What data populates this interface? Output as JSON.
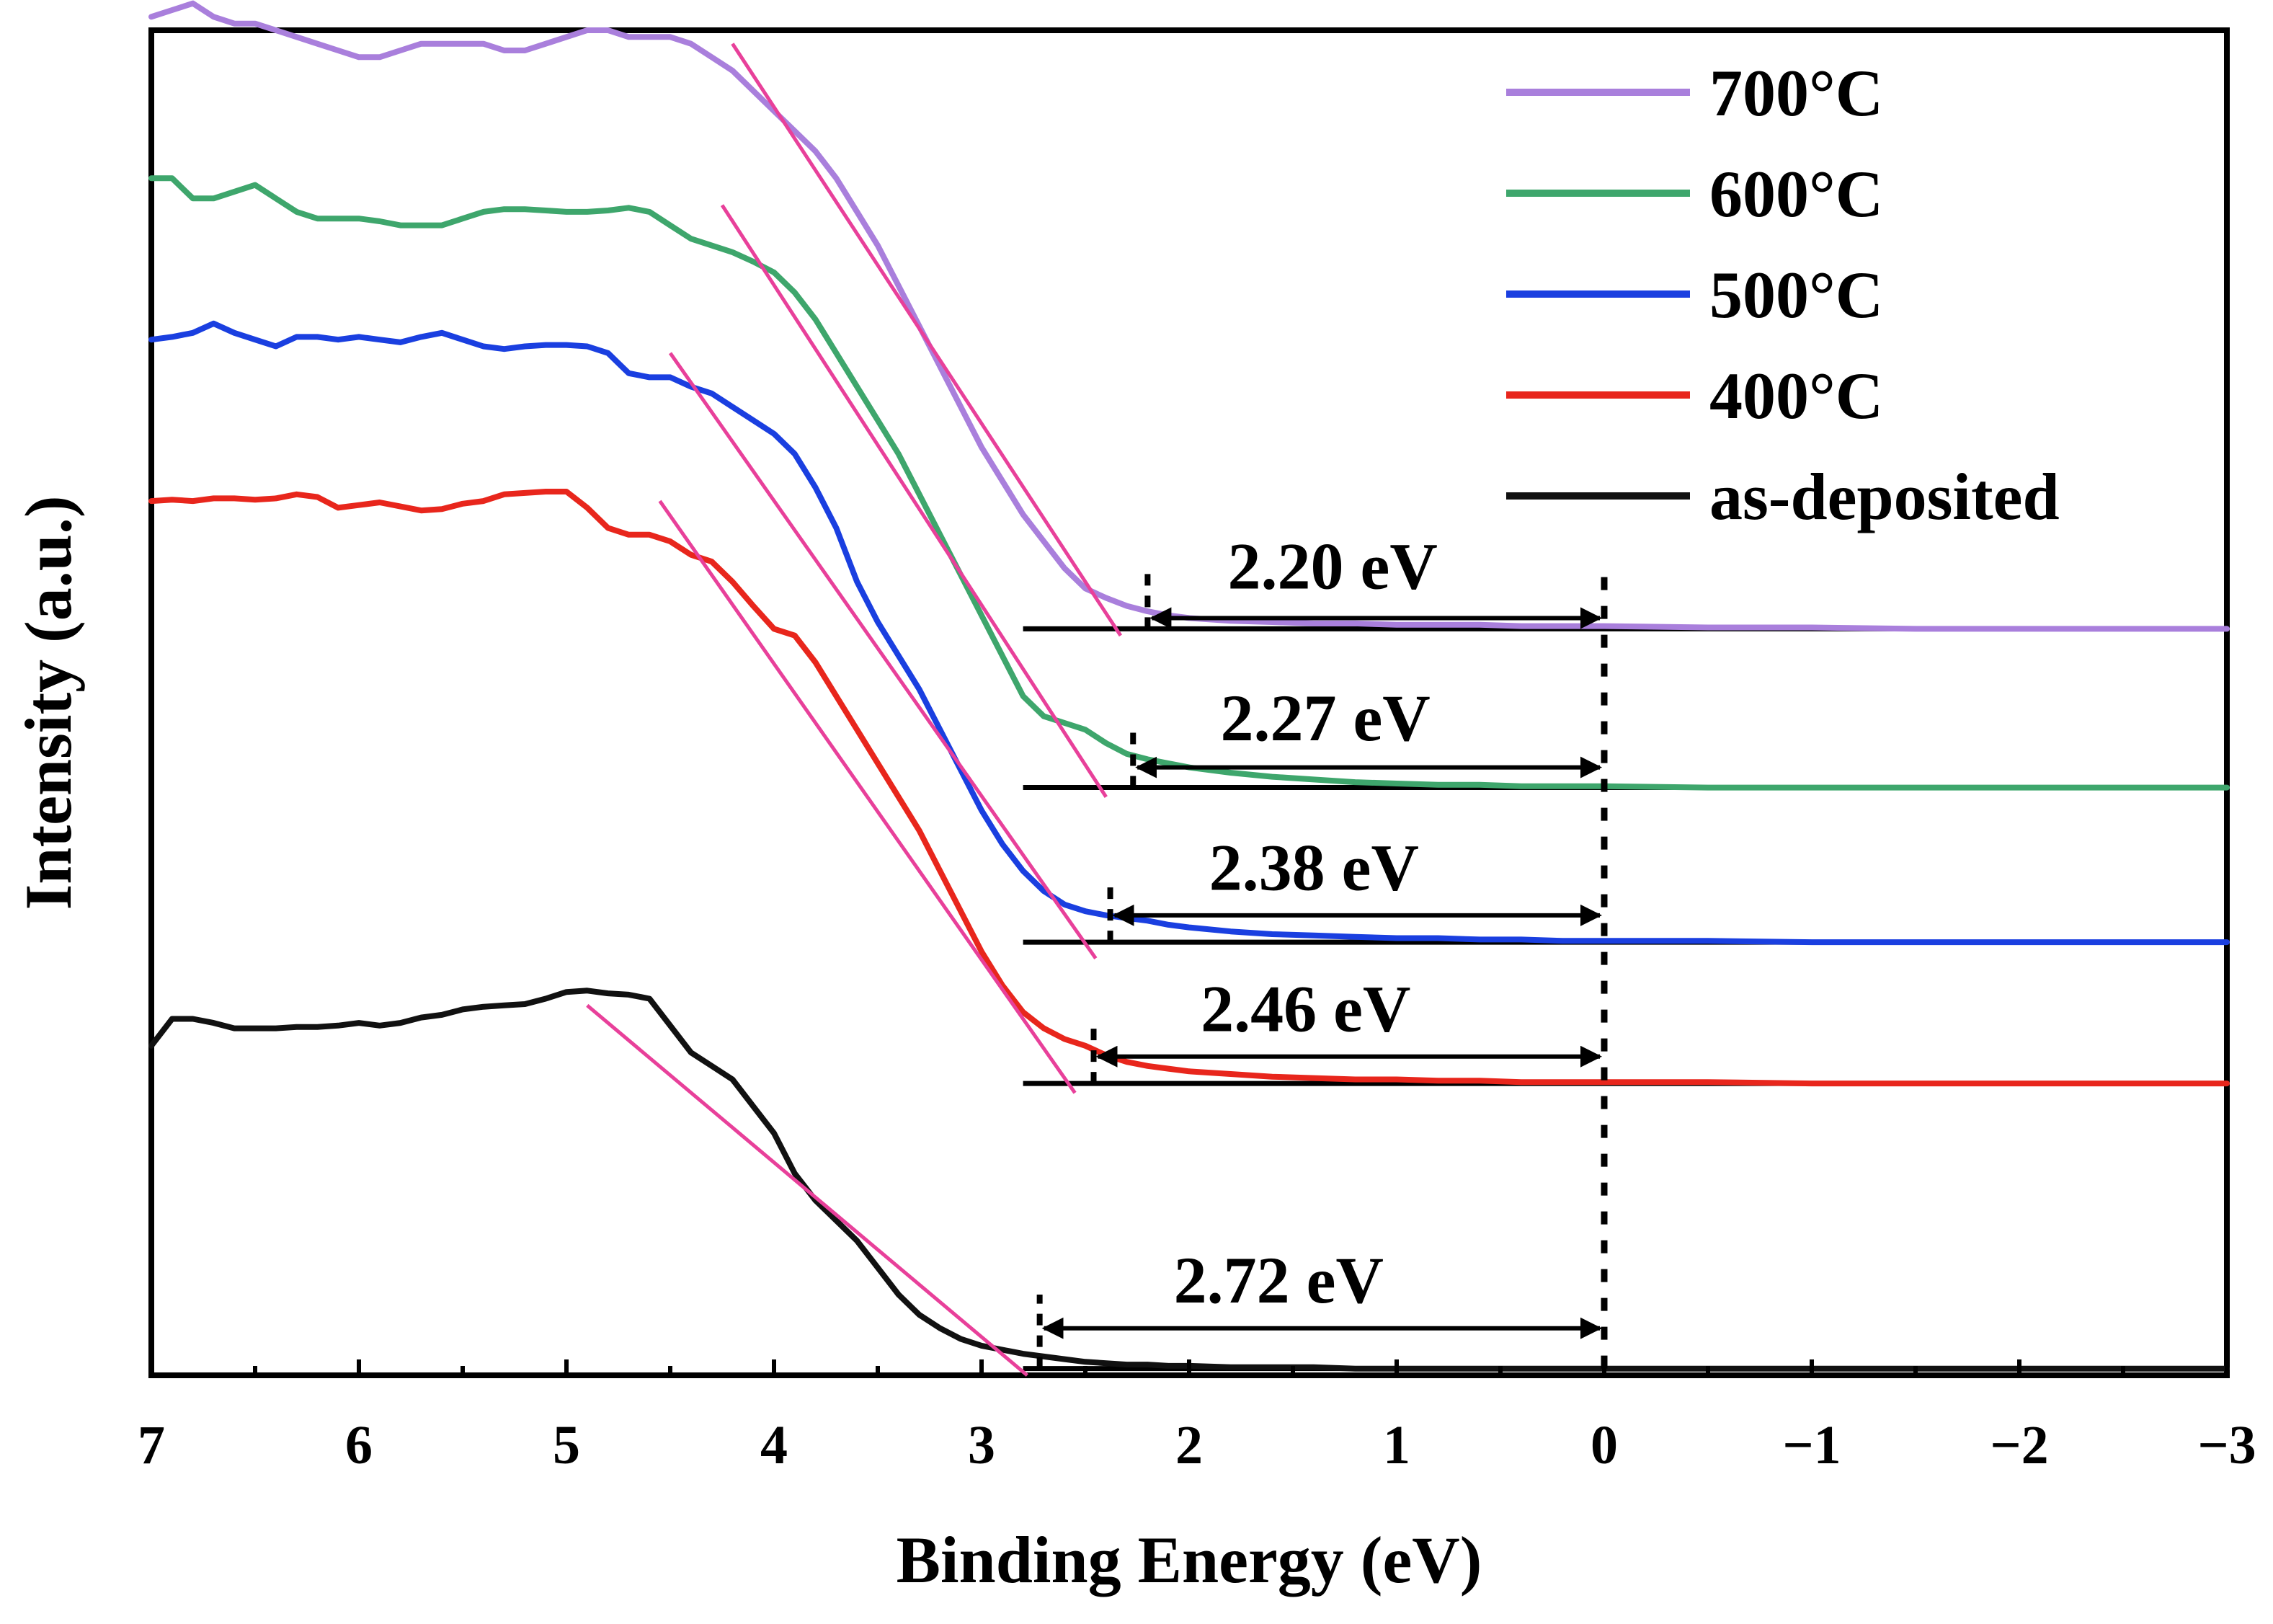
{
  "chart_data": {
    "type": "line",
    "title": "",
    "xlabel": "Binding Energy (eV)",
    "ylabel": "Intensity (a.u.)",
    "xlim": [
      7,
      -3
    ],
    "ylim": [
      0,
      10
    ],
    "x_ticks": [
      {
        "value": 7,
        "label": "7"
      },
      {
        "value": 6,
        "label": "6"
      },
      {
        "value": 5,
        "label": "5"
      },
      {
        "value": 4,
        "label": "4"
      },
      {
        "value": 3,
        "label": "3"
      },
      {
        "value": 2,
        "label": "2"
      },
      {
        "value": 1,
        "label": "1"
      },
      {
        "value": 0,
        "label": "0"
      },
      {
        "value": -1,
        "label": "−1"
      },
      {
        "value": -2,
        "label": "−2"
      },
      {
        "value": -3,
        "label": "−3"
      }
    ],
    "grid": false,
    "legend_position": "top-right",
    "series": [
      {
        "name": "700°C",
        "color": "#a97fdc",
        "baseline": 5.55,
        "baseline_start": 2.8,
        "x": [
          7.0,
          6.9,
          6.8,
          6.7,
          6.6,
          6.5,
          6.4,
          6.3,
          6.2,
          6.1,
          6.0,
          5.9,
          5.8,
          5.7,
          5.6,
          5.5,
          5.4,
          5.3,
          5.2,
          5.1,
          5.0,
          4.9,
          4.8,
          4.7,
          4.6,
          4.5,
          4.4,
          4.3,
          4.2,
          4.1,
          4.0,
          3.9,
          3.8,
          3.7,
          3.6,
          3.5,
          3.4,
          3.3,
          3.2,
          3.1,
          3.0,
          2.9,
          2.8,
          2.7,
          2.6,
          2.5,
          2.4,
          2.3,
          2.2,
          2.1,
          2.0,
          1.8,
          1.6,
          1.4,
          1.2,
          1.0,
          0.8,
          0.6,
          0.4,
          0.2,
          0.0,
          -0.5,
          -1.0,
          -1.5,
          -2.0,
          -2.5,
          -3.0
        ],
        "y": [
          10.1,
          10.15,
          10.2,
          10.1,
          10.05,
          10.05,
          10.0,
          9.95,
          9.9,
          9.85,
          9.8,
          9.8,
          9.85,
          9.9,
          9.9,
          9.9,
          9.9,
          9.85,
          9.85,
          9.9,
          9.95,
          10.0,
          10.0,
          9.95,
          9.95,
          9.95,
          9.9,
          9.8,
          9.7,
          9.55,
          9.4,
          9.25,
          9.1,
          8.9,
          8.65,
          8.4,
          8.1,
          7.8,
          7.5,
          7.2,
          6.9,
          6.65,
          6.4,
          6.2,
          6.0,
          5.85,
          5.78,
          5.72,
          5.68,
          5.65,
          5.63,
          5.61,
          5.6,
          5.59,
          5.59,
          5.58,
          5.58,
          5.58,
          5.57,
          5.57,
          5.57,
          5.56,
          5.56,
          5.55,
          5.55,
          5.55,
          5.55
        ]
      },
      {
        "name": "600°C",
        "color": "#3ea66c",
        "baseline": 4.37,
        "baseline_start": 2.8,
        "x": [
          7.0,
          6.9,
          6.8,
          6.7,
          6.6,
          6.5,
          6.4,
          6.3,
          6.2,
          6.1,
          6.0,
          5.9,
          5.8,
          5.7,
          5.6,
          5.5,
          5.4,
          5.3,
          5.2,
          5.1,
          5.0,
          4.9,
          4.8,
          4.7,
          4.6,
          4.5,
          4.4,
          4.3,
          4.2,
          4.1,
          4.0,
          3.9,
          3.8,
          3.7,
          3.6,
          3.5,
          3.4,
          3.3,
          3.2,
          3.1,
          3.0,
          2.9,
          2.8,
          2.7,
          2.6,
          2.5,
          2.4,
          2.3,
          2.2,
          2.1,
          2.0,
          1.8,
          1.6,
          1.4,
          1.2,
          1.0,
          0.8,
          0.6,
          0.4,
          0.2,
          0.0,
          -0.5,
          -1.0,
          -1.5,
          -2.0,
          -2.5,
          -3.0
        ],
        "y": [
          8.9,
          8.9,
          8.75,
          8.75,
          8.8,
          8.85,
          8.75,
          8.65,
          8.6,
          8.6,
          8.6,
          8.58,
          8.55,
          8.55,
          8.55,
          8.6,
          8.65,
          8.67,
          8.67,
          8.66,
          8.65,
          8.65,
          8.66,
          8.68,
          8.65,
          8.55,
          8.45,
          8.4,
          8.35,
          8.28,
          8.2,
          8.05,
          7.85,
          7.6,
          7.35,
          7.1,
          6.85,
          6.55,
          6.25,
          5.95,
          5.65,
          5.35,
          5.05,
          4.9,
          4.85,
          4.8,
          4.7,
          4.62,
          4.58,
          4.55,
          4.52,
          4.48,
          4.45,
          4.43,
          4.41,
          4.4,
          4.39,
          4.39,
          4.38,
          4.38,
          4.38,
          4.37,
          4.37,
          4.37,
          4.37,
          4.37,
          4.37
        ]
      },
      {
        "name": "500°C",
        "color": "#1a3fe0",
        "baseline": 3.22,
        "baseline_start": 2.8,
        "x": [
          7.0,
          6.9,
          6.8,
          6.7,
          6.6,
          6.5,
          6.4,
          6.3,
          6.2,
          6.1,
          6.0,
          5.9,
          5.8,
          5.7,
          5.6,
          5.5,
          5.4,
          5.3,
          5.2,
          5.1,
          5.0,
          4.9,
          4.8,
          4.7,
          4.6,
          4.5,
          4.4,
          4.3,
          4.2,
          4.1,
          4.0,
          3.9,
          3.8,
          3.7,
          3.6,
          3.5,
          3.4,
          3.3,
          3.2,
          3.1,
          3.0,
          2.9,
          2.8,
          2.7,
          2.6,
          2.5,
          2.4,
          2.3,
          2.2,
          2.1,
          2.0,
          1.8,
          1.6,
          1.4,
          1.2,
          1.0,
          0.8,
          0.6,
          0.4,
          0.2,
          0.0,
          -0.5,
          -1.0,
          -1.5,
          -2.0,
          -2.5,
          -3.0
        ],
        "y": [
          7.7,
          7.72,
          7.75,
          7.82,
          7.75,
          7.7,
          7.65,
          7.72,
          7.72,
          7.7,
          7.72,
          7.7,
          7.68,
          7.72,
          7.75,
          7.7,
          7.65,
          7.63,
          7.65,
          7.66,
          7.66,
          7.65,
          7.6,
          7.45,
          7.42,
          7.42,
          7.35,
          7.3,
          7.2,
          7.1,
          7.0,
          6.85,
          6.6,
          6.3,
          5.9,
          5.6,
          5.35,
          5.1,
          4.8,
          4.5,
          4.2,
          3.95,
          3.75,
          3.6,
          3.5,
          3.45,
          3.42,
          3.4,
          3.38,
          3.35,
          3.33,
          3.3,
          3.28,
          3.27,
          3.26,
          3.25,
          3.25,
          3.24,
          3.24,
          3.23,
          3.23,
          3.23,
          3.22,
          3.22,
          3.22,
          3.22,
          3.22
        ]
      },
      {
        "name": "400°C",
        "color": "#e8261c",
        "baseline": 2.17,
        "baseline_start": 2.8,
        "x": [
          7.0,
          6.9,
          6.8,
          6.7,
          6.6,
          6.5,
          6.4,
          6.3,
          6.2,
          6.1,
          6.0,
          5.9,
          5.8,
          5.7,
          5.6,
          5.5,
          5.4,
          5.3,
          5.2,
          5.1,
          5.0,
          4.9,
          4.8,
          4.7,
          4.6,
          4.5,
          4.4,
          4.3,
          4.2,
          4.1,
          4.0,
          3.9,
          3.8,
          3.7,
          3.6,
          3.5,
          3.4,
          3.3,
          3.2,
          3.1,
          3.0,
          2.9,
          2.8,
          2.7,
          2.6,
          2.5,
          2.4,
          2.3,
          2.2,
          2.1,
          2.0,
          1.8,
          1.6,
          1.4,
          1.2,
          1.0,
          0.8,
          0.6,
          0.4,
          0.2,
          0.0,
          -0.5,
          -1.0,
          -1.5,
          -2.0,
          -2.5,
          -3.0
        ],
        "y": [
          6.5,
          6.51,
          6.5,
          6.52,
          6.52,
          6.51,
          6.52,
          6.55,
          6.53,
          6.45,
          6.47,
          6.49,
          6.46,
          6.43,
          6.44,
          6.48,
          6.5,
          6.55,
          6.56,
          6.57,
          6.57,
          6.45,
          6.3,
          6.25,
          6.25,
          6.2,
          6.1,
          6.05,
          5.9,
          5.72,
          5.55,
          5.5,
          5.3,
          5.05,
          4.8,
          4.55,
          4.3,
          4.05,
          3.75,
          3.45,
          3.15,
          2.9,
          2.7,
          2.58,
          2.5,
          2.45,
          2.38,
          2.33,
          2.3,
          2.28,
          2.26,
          2.24,
          2.22,
          2.21,
          2.2,
          2.2,
          2.19,
          2.19,
          2.18,
          2.18,
          2.18,
          2.18,
          2.17,
          2.17,
          2.17,
          2.17,
          2.17
        ]
      },
      {
        "name": "as-deposited",
        "color": "#111111",
        "baseline": 0.05,
        "baseline_start": 2.8,
        "x": [
          7.0,
          6.9,
          6.8,
          6.7,
          6.6,
          6.5,
          6.4,
          6.3,
          6.2,
          6.1,
          6.0,
          5.9,
          5.8,
          5.7,
          5.6,
          5.5,
          5.4,
          5.3,
          5.2,
          5.1,
          5.0,
          4.9,
          4.8,
          4.7,
          4.6,
          4.5,
          4.4,
          4.3,
          4.2,
          4.1,
          4.0,
          3.9,
          3.8,
          3.7,
          3.6,
          3.5,
          3.4,
          3.3,
          3.2,
          3.1,
          3.0,
          2.9,
          2.8,
          2.7,
          2.6,
          2.5,
          2.4,
          2.3,
          2.2,
          2.1,
          2.0,
          1.8,
          1.6,
          1.4,
          1.2,
          1.0,
          0.8,
          0.6,
          0.4,
          0.2,
          0.0,
          -0.5,
          -1.0,
          -1.5,
          -2.0,
          -2.5,
          -3.0
        ],
        "y": [
          2.45,
          2.65,
          2.65,
          2.62,
          2.58,
          2.58,
          2.58,
          2.59,
          2.59,
          2.6,
          2.62,
          2.6,
          2.62,
          2.66,
          2.68,
          2.72,
          2.74,
          2.75,
          2.76,
          2.8,
          2.85,
          2.86,
          2.84,
          2.83,
          2.8,
          2.6,
          2.4,
          2.3,
          2.2,
          2.0,
          1.8,
          1.5,
          1.3,
          1.15,
          1.0,
          0.8,
          0.6,
          0.45,
          0.35,
          0.27,
          0.22,
          0.19,
          0.16,
          0.14,
          0.12,
          0.1,
          0.09,
          0.08,
          0.08,
          0.07,
          0.07,
          0.06,
          0.06,
          0.06,
          0.05,
          0.05,
          0.05,
          0.05,
          0.05,
          0.05,
          0.05,
          0.05,
          0.05,
          0.05,
          0.05,
          0.05,
          0.05
        ]
      }
    ],
    "tangents": [
      {
        "series": "700°C",
        "x": [
          4.2,
          2.33
        ],
        "y": [
          9.9,
          5.5
        ]
      },
      {
        "series": "600°C",
        "x": [
          4.25,
          2.4
        ],
        "y": [
          8.7,
          4.3
        ]
      },
      {
        "series": "500°C",
        "x": [
          4.5,
          2.45
        ],
        "y": [
          7.6,
          3.1
        ]
      },
      {
        "series": "400°C",
        "x": [
          4.55,
          2.55
        ],
        "y": [
          6.5,
          2.1
        ]
      },
      {
        "series": "as-deposited",
        "x": [
          4.9,
          2.78
        ],
        "y": [
          2.75,
          0.0
        ]
      }
    ],
    "zero_marker": {
      "x": 0,
      "y_range": [
        0.05,
        5.97
      ]
    },
    "annotations": [
      {
        "series": "700°C",
        "label": "2.20 eV",
        "value": 2.2,
        "arrow_y": 5.63,
        "marker_y": [
          5.55,
          5.97
        ],
        "label_y": 5.85
      },
      {
        "series": "600°C",
        "label": "2.27 eV",
        "value": 2.27,
        "arrow_y": 4.52,
        "marker_y": [
          4.37,
          4.82
        ],
        "label_y": 4.72
      },
      {
        "series": "500°C",
        "label": "2.38 eV",
        "value": 2.38,
        "arrow_y": 3.42,
        "marker_y": [
          3.22,
          3.65
        ],
        "label_y": 3.61
      },
      {
        "series": "400°C",
        "label": "2.46 eV",
        "value": 2.46,
        "arrow_y": 2.37,
        "marker_y": [
          2.17,
          2.62
        ],
        "label_y": 2.56
      },
      {
        "series": "as-deposited",
        "label": "2.72 eV",
        "value": 2.72,
        "arrow_y": 0.35,
        "marker_y": [
          0.05,
          0.6
        ],
        "label_y": 0.54
      }
    ]
  }
}
